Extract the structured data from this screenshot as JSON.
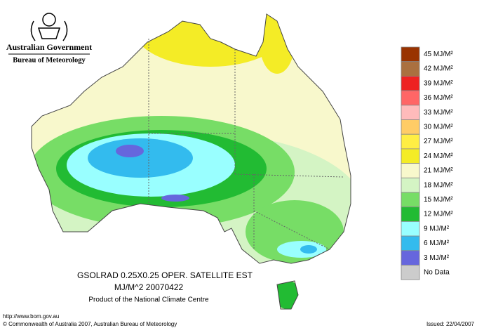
{
  "header": {
    "government": "Australian Government",
    "agency": "Bureau of Meteorology"
  },
  "map": {
    "product": "GSOLRAD    0.25X0.25 OPER. SATELLITE EST",
    "units_date": "MJ/M^2  20070422",
    "credit": "Product of the National Climate Centre"
  },
  "legend": [
    {
      "label": "45 MJ/M²",
      "color": "#993300"
    },
    {
      "label": "42 MJ/M²",
      "color": "#aa7040"
    },
    {
      "label": "39 MJ/M²",
      "color": "#ee2222"
    },
    {
      "label": "36 MJ/M²",
      "color": "#ff6666"
    },
    {
      "label": "33 MJ/M²",
      "color": "#ffbbbb"
    },
    {
      "label": "30 MJ/M²",
      "color": "#ffcc66"
    },
    {
      "label": "27 MJ/M²",
      "color": "#ffee44"
    },
    {
      "label": "24 MJ/M²",
      "color": "#f4ec26"
    },
    {
      "label": "21 MJ/M²",
      "color": "#f8f8cc"
    },
    {
      "label": "18 MJ/M²",
      "color": "#d4f4c4"
    },
    {
      "label": "15 MJ/M²",
      "color": "#77dd66"
    },
    {
      "label": "12 MJ/M²",
      "color": "#22bb33"
    },
    {
      "label": "9 MJ/M²",
      "color": "#99ffff"
    },
    {
      "label": "6 MJ/M²",
      "color": "#33bbee"
    },
    {
      "label": "3 MJ/M²",
      "color": "#6666dd"
    },
    {
      "label": "No Data",
      "color": "#cccccc"
    }
  ],
  "footer": {
    "url": "http://www.bom.gov.au",
    "copyright": "© Commonwealth of Australia 2007, Australian Bureau of Meteorology",
    "issued": "Issued: 22/04/2007"
  }
}
